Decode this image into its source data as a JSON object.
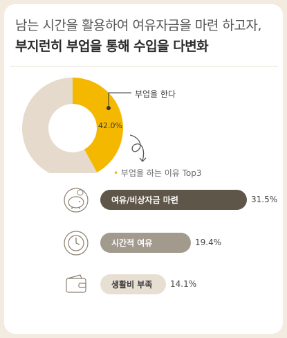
{
  "header": {
    "line1": "남는 시간을 활용하여 여유자금을 마련 하고자,",
    "line2": "부지런히 부업을 통해 수입을 다변화"
  },
  "colors": {
    "donut_highlight": "#f5b800",
    "donut_rest": "#e5dacb",
    "bar1": "#5f564a",
    "bar2": "#a39a8e",
    "bar3": "#e8dfd3",
    "icon_stroke": "#8a8070"
  },
  "chart_data": [
    {
      "type": "pie",
      "labels": [
        "부업을 한다",
        ""
      ],
      "values": [
        42.0,
        58.0
      ],
      "data_labels": [
        "42.0%"
      ],
      "annotation": "부업을 한다"
    },
    {
      "type": "bar",
      "title": "부업을 하는 이유 Top3",
      "categories": [
        "여유/비상자금 마련",
        "시간적 여유",
        "생활비 부족"
      ],
      "values": [
        31.5,
        19.4,
        14.1
      ],
      "value_labels": [
        "31.5%",
        "19.4%",
        "14.1%"
      ],
      "icons": [
        "piggy-bank-icon",
        "clock-icon",
        "wallet-icon"
      ]
    }
  ]
}
